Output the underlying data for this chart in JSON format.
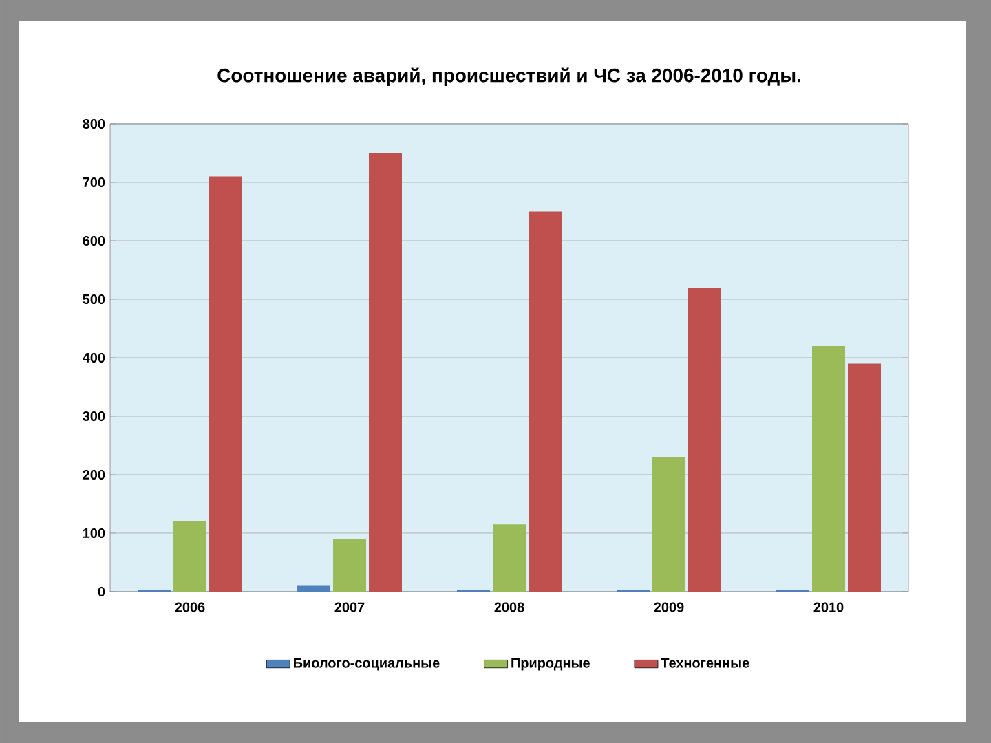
{
  "chart_data": {
    "type": "bar",
    "title": "Соотношение аварий, происшествий и ЧС за 2006-2010 годы.",
    "categories": [
      "2006",
      "2007",
      "2008",
      "2009",
      "2010"
    ],
    "series": [
      {
        "name": "Биолого-социальные",
        "color": "#4f81bd",
        "values": [
          3,
          10,
          3,
          3,
          3
        ]
      },
      {
        "name": "Природные",
        "color": "#9bbb59",
        "values": [
          120,
          90,
          115,
          230,
          420
        ]
      },
      {
        "name": "Техногенные",
        "color": "#c0504d",
        "values": [
          710,
          750,
          650,
          520,
          390
        ]
      }
    ],
    "ylim": [
      0,
      800
    ],
    "yticks": [
      0,
      100,
      200,
      300,
      400,
      500,
      600,
      700,
      800
    ],
    "grid": "y",
    "legend": "bottom"
  }
}
